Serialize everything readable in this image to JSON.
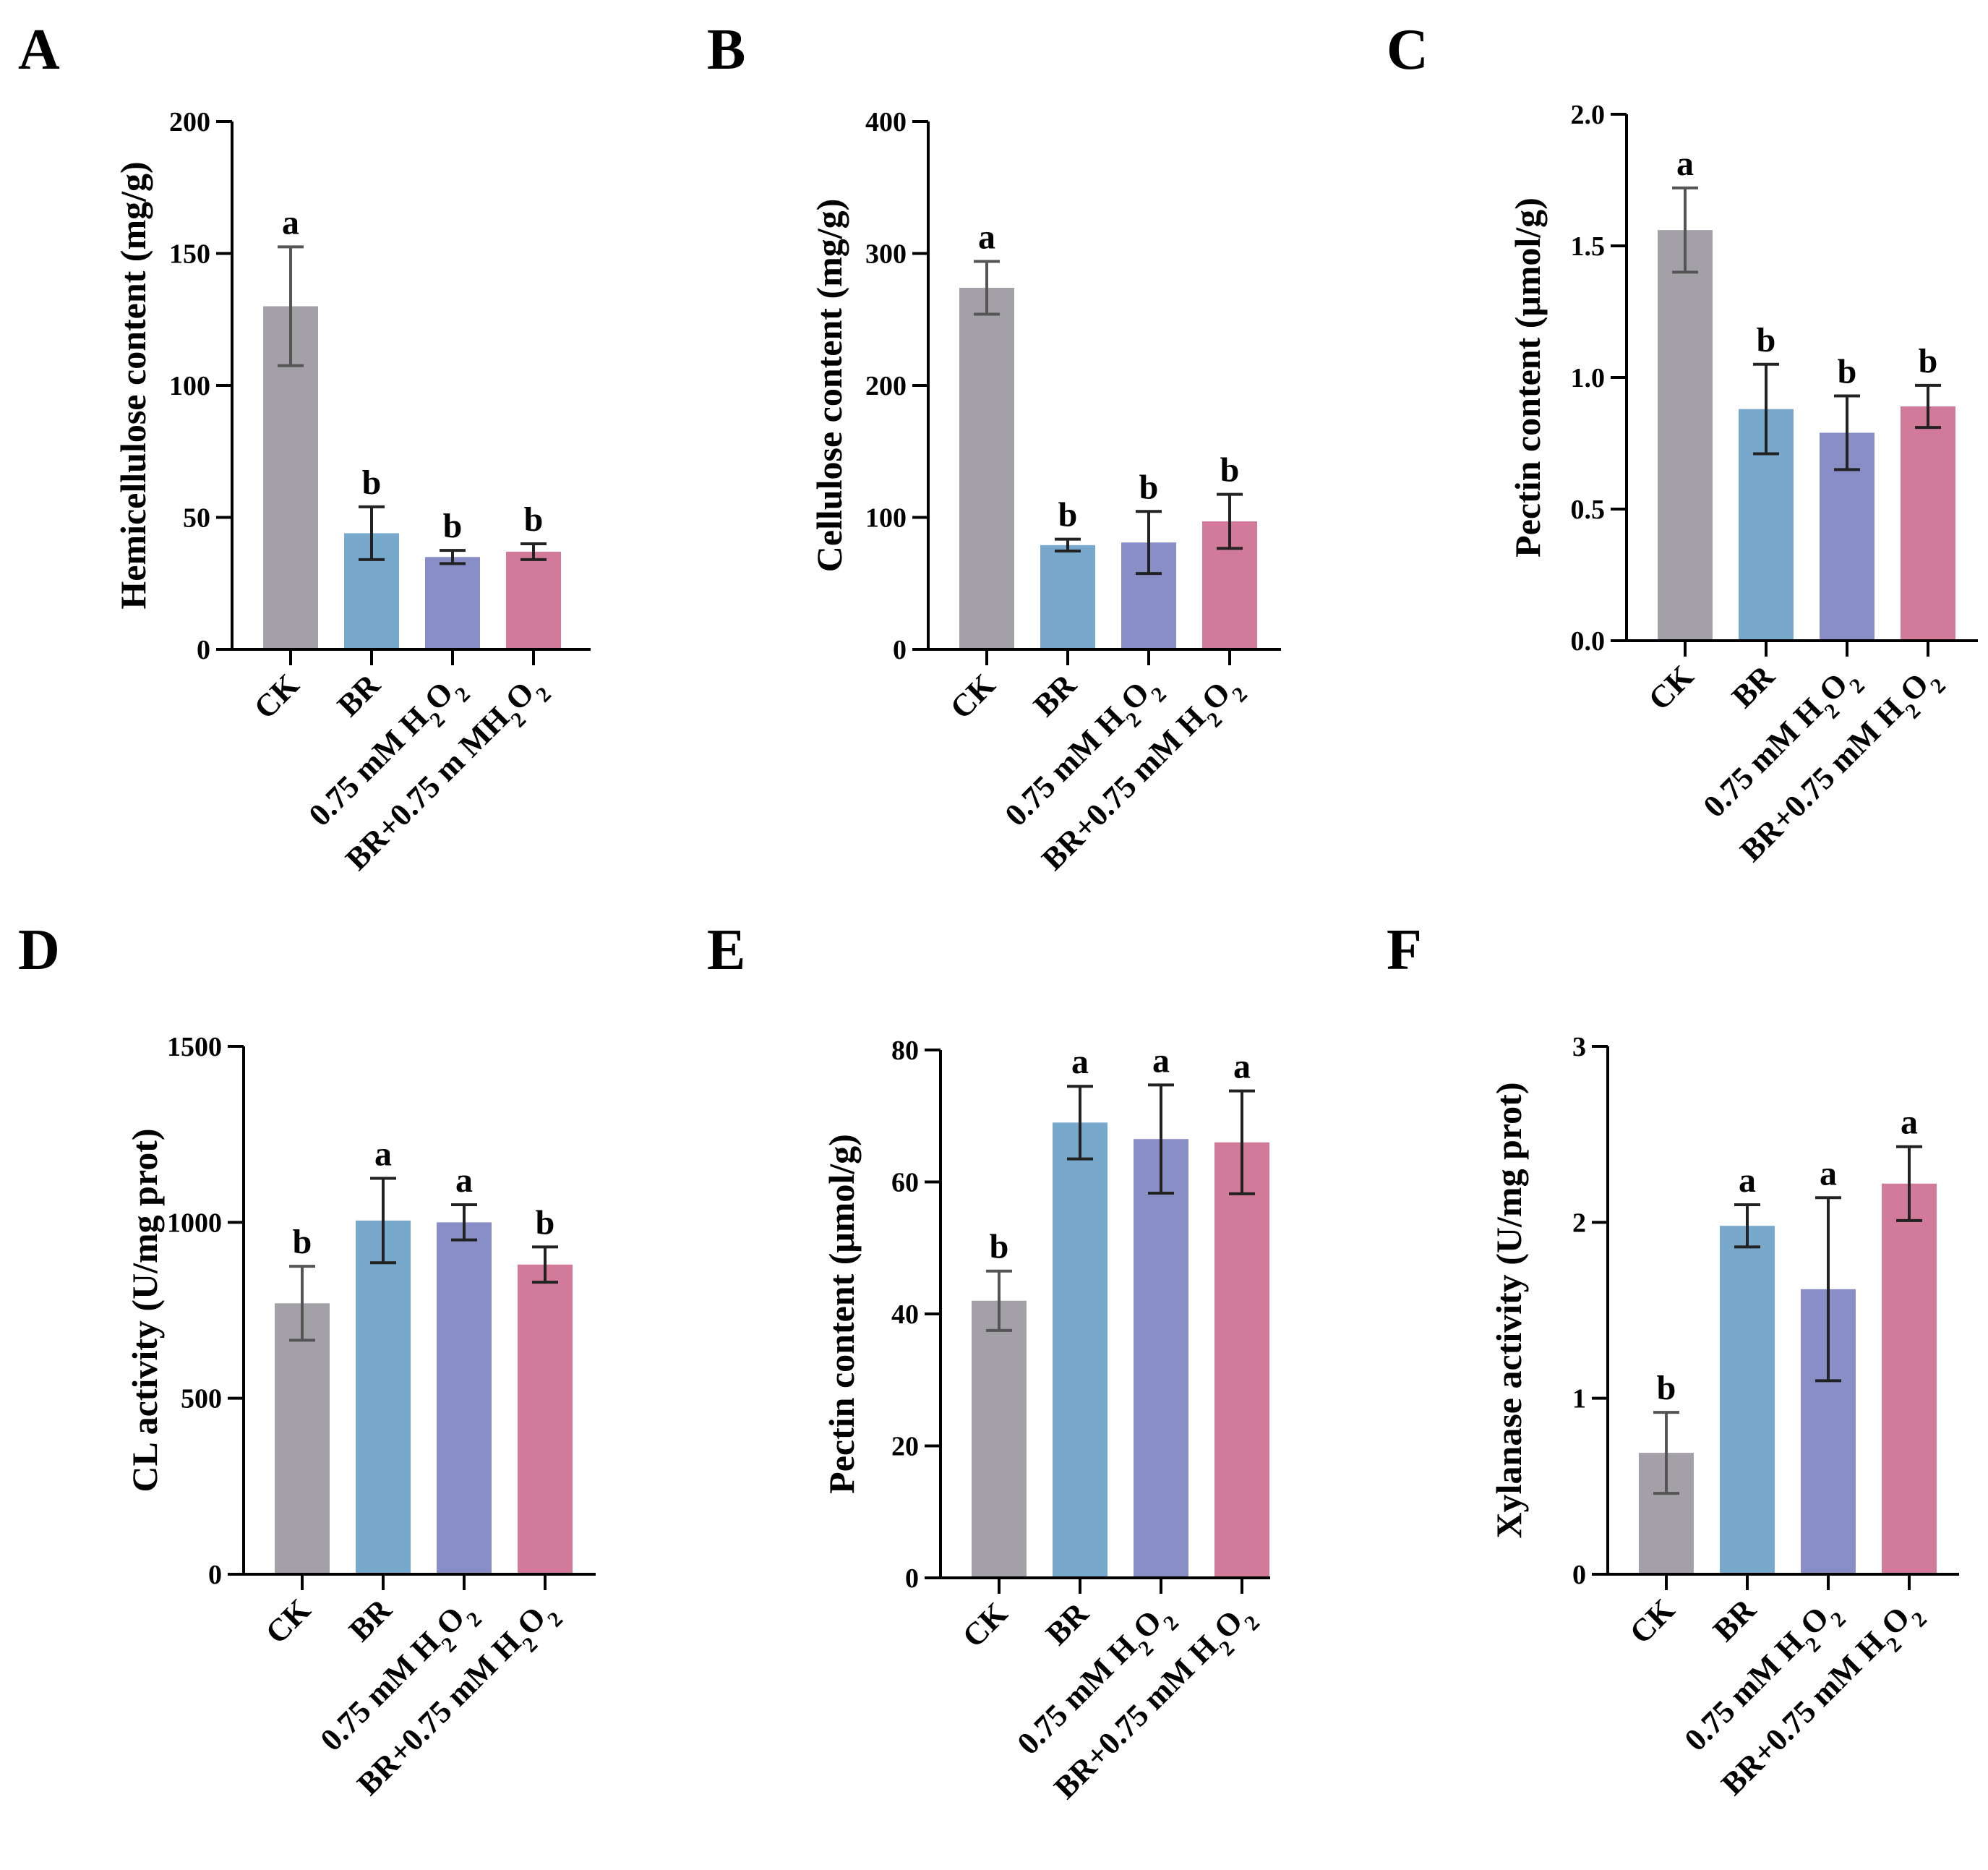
{
  "colors": [
    "#a3a0a8",
    "#78a8cc",
    "#8a8ec6",
    "#d17a9a"
  ],
  "chart_data": [
    {
      "panel": "A",
      "type": "bar",
      "ylabel": "Hemicellulose content (mg/g)",
      "ylim": [
        0,
        200
      ],
      "yticks": [
        "0",
        "50",
        "100",
        "150",
        "200"
      ],
      "ytick_values": [
        0,
        50,
        100,
        150,
        200
      ],
      "categories": [
        "CK",
        "BR",
        "0.75 mM H2O2",
        "BR+0.75 m MH2O2"
      ],
      "values": [
        130,
        44,
        35,
        37
      ],
      "errors": [
        22.5,
        10,
        2.5,
        3
      ],
      "letters": [
        "a",
        "b",
        "b",
        "b"
      ]
    },
    {
      "panel": "B",
      "type": "bar",
      "ylabel": "Cellulose content (mg/g)",
      "ylim": [
        0,
        400
      ],
      "yticks": [
        "0",
        "100",
        "200",
        "300",
        "400"
      ],
      "ytick_values": [
        0,
        100,
        200,
        300,
        400
      ],
      "categories": [
        "CK",
        "BR",
        "0.75 mM H2O2",
        "BR+0.75 mM H2O2"
      ],
      "values": [
        274,
        79,
        81,
        97
      ],
      "errors": [
        20,
        4.5,
        23.5,
        20.5
      ],
      "letters": [
        "a",
        "b",
        "b",
        "b"
      ]
    },
    {
      "panel": "C",
      "type": "bar",
      "ylabel": "Pectin content (μmol/g)",
      "ylim": [
        0,
        2.0
      ],
      "yticks": [
        "0.0",
        "0.5",
        "1.0",
        "1.5",
        "2.0"
      ],
      "ytick_values": [
        0,
        0.5,
        1.0,
        1.5,
        2.0
      ],
      "categories": [
        "CK",
        "BR",
        "0.75 mM H2O2",
        "BR+0.75 mM H2O2"
      ],
      "values": [
        1.56,
        0.88,
        0.79,
        0.89
      ],
      "errors": [
        0.16,
        0.17,
        0.14,
        0.08
      ],
      "letters": [
        "a",
        "b",
        "b",
        "b"
      ]
    },
    {
      "panel": "D",
      "type": "bar",
      "ylabel": "CL activity (U/mg prot)",
      "ylim": [
        0,
        1500
      ],
      "yticks": [
        "0",
        "500",
        "1000",
        "1500"
      ],
      "ytick_values": [
        0,
        500,
        1000,
        1500
      ],
      "categories": [
        "CK",
        "BR",
        "0.75 mM H2O2",
        "BR+0.75 mM H2O2"
      ],
      "values": [
        770,
        1005,
        1000,
        880
      ],
      "errors": [
        105,
        120,
        50,
        50
      ],
      "letters": [
        "b",
        "a",
        "a",
        "b"
      ]
    },
    {
      "panel": "E",
      "type": "bar",
      "ylabel": "Pectin content (μmol/g)",
      "ylim": [
        0,
        80
      ],
      "yticks": [
        "0",
        "20",
        "40",
        "60",
        "80"
      ],
      "ytick_values": [
        0,
        20,
        40,
        60,
        80
      ],
      "categories": [
        "CK",
        "BR",
        "0.75 mM H2O2",
        "BR+0.75 mM H2O2"
      ],
      "values": [
        42,
        69,
        66.5,
        66
      ],
      "errors": [
        4.5,
        5.5,
        8.2,
        7.8
      ],
      "letters": [
        "b",
        "a",
        "a",
        "a"
      ]
    },
    {
      "panel": "F",
      "type": "bar",
      "ylabel": "Xylanase activity (U/mg prot)",
      "ylim": [
        0,
        3
      ],
      "yticks": [
        "0",
        "1",
        "2",
        "3"
      ],
      "ytick_values": [
        0,
        1,
        2,
        3
      ],
      "categories": [
        "CK",
        "BR",
        "0.75 mM H2O2",
        "BR+0.75 mM H2O2"
      ],
      "values": [
        0.69,
        1.98,
        1.62,
        2.22
      ],
      "errors": [
        0.23,
        0.12,
        0.52,
        0.21
      ],
      "letters": [
        "b",
        "a",
        "a",
        "a"
      ]
    }
  ]
}
